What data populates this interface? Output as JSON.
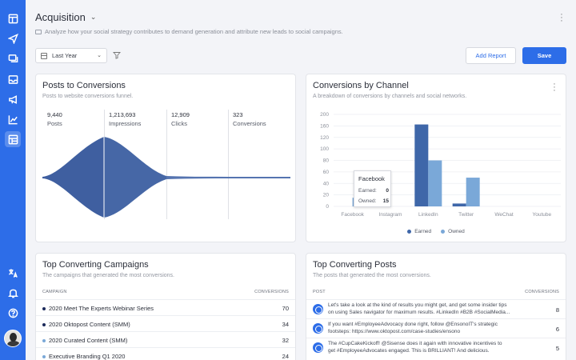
{
  "header": {
    "title": "Acquisition",
    "subtitle": "Analyze how your social strategy contributes to demand generation and attribute new leads to social campaigns.",
    "date_filter": "Last Year",
    "add_report_label": "Add Report",
    "save_label": "Save"
  },
  "sidebar": {
    "items": [
      "dashboard-icon",
      "send-icon",
      "messages-icon",
      "inbox-icon",
      "megaphone-icon",
      "analytics-icon",
      "reports-icon"
    ],
    "bottom": [
      "translate-icon",
      "notifications-icon",
      "help-icon"
    ]
  },
  "funnel_card": {
    "title": "Posts to Conversions",
    "subtitle": "Posts to website conversions funnel.",
    "stats": [
      {
        "value": "9,440",
        "label": "Posts"
      },
      {
        "value": "1,213,693",
        "label": "Impressions"
      },
      {
        "value": "12,909",
        "label": "Clicks"
      },
      {
        "value": "323",
        "label": "Conversions"
      }
    ]
  },
  "channel_card": {
    "title": "Conversions by Channel",
    "subtitle": "A breakdown of conversions by channels and social networks."
  },
  "chart_data": {
    "type": "bar",
    "categories": [
      "Facebook",
      "Instagram",
      "LinkedIn",
      "Twitter",
      "WeChat",
      "Youtube"
    ],
    "series": [
      {
        "name": "Earned",
        "values": [
          0,
          0,
          165,
          5,
          0,
          0
        ],
        "color": "#3f67a9"
      },
      {
        "name": "Owned",
        "values": [
          15,
          0,
          80,
          50,
          0,
          0
        ],
        "color": "#7aa8d8"
      }
    ],
    "yticks": [
      "0",
      "20",
      "40",
      "60",
      "80",
      "100",
      "120",
      "160",
      "200"
    ],
    "ylim": [
      0,
      200
    ],
    "legend": "bottom",
    "tooltip": {
      "title": "Facebook",
      "earned_label": "Earned:",
      "earned_value": "0",
      "owned_label": "Owned:",
      "owned_value": "15"
    }
  },
  "campaigns_card": {
    "title": "Top Converting Campaigns",
    "subtitle": "The campaigns that generated the most conversions.",
    "col_campaign": "CAMPAIGN",
    "col_conversions": "CONVERSIONS",
    "rows": [
      {
        "name": "2020 Meet The Experts Webinar Series",
        "value": "70",
        "color": "#1c2a5a"
      },
      {
        "name": "2020 Oktopost Content (SMM)",
        "value": "34",
        "color": "#1c2a5a"
      },
      {
        "name": "2020 Curated Content (SMM)",
        "value": "32",
        "color": "#7aa8d8"
      },
      {
        "name": "Executive Branding Q1 2020",
        "value": "24",
        "color": "#7aa8d8"
      }
    ]
  },
  "posts_card": {
    "title": "Top Converting Posts",
    "subtitle": "The posts that generated the most conversions.",
    "col_post": "POST",
    "col_conversions": "CONVERSIONS",
    "rows": [
      {
        "line1": "Let's take a look at the kind of results you might get, and get some insider tips",
        "line2": "on using Sales navigator for maximum results. #LinkedIn #B2B #SocialMedia...",
        "value": "8"
      },
      {
        "line1": "If you want #EmployeeAdvocacy done right, follow @EnsonoIT's strategic",
        "line2": "footsteps: https://www.oktopost.com/case-studies/ensono",
        "value": "6"
      },
      {
        "line1": "The #CupCakeKickoff! @Sisense does it again with innovative incentives to",
        "line2": "get #EmployeeAdvocates engaged. This is BRILLIANT! And delicious.",
        "value": "5"
      }
    ]
  }
}
